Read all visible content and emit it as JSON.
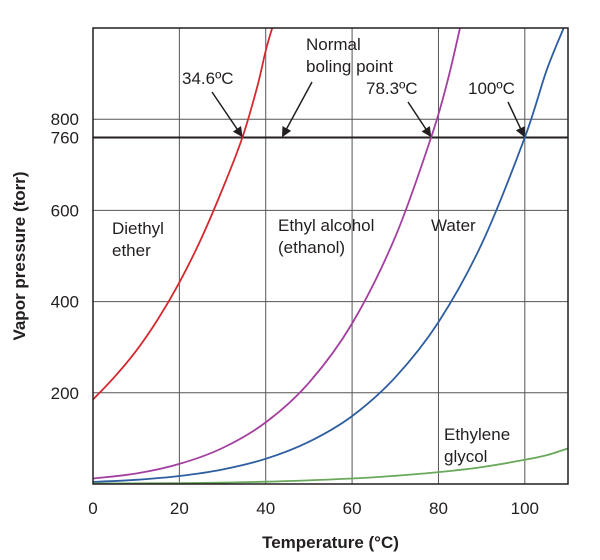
{
  "chart_data": {
    "type": "line",
    "xlabel": "Temperature (°C)",
    "ylabel": "Vapor pressure (torr)",
    "xlim": [
      0,
      110
    ],
    "ylim": [
      0,
      1000
    ],
    "x_ticks": [
      "0",
      "20",
      "40",
      "60",
      "80",
      "100"
    ],
    "x_tick_values": [
      0,
      20,
      40,
      60,
      80,
      100
    ],
    "y_ticks": [
      "200",
      "400",
      "600",
      "760",
      "800"
    ],
    "y_tick_values": [
      200,
      400,
      600,
      760,
      800
    ],
    "grid": true,
    "reference_line": {
      "y": 760,
      "label_lines": [
        "Normal",
        "boling point"
      ]
    },
    "series": [
      {
        "name": "Diethyl ether",
        "label_lines": [
          "Diethyl",
          "ether"
        ],
        "color": "#d42a2f",
        "points": [
          [
            0,
            185
          ],
          [
            5,
            235
          ],
          [
            10,
            292
          ],
          [
            15,
            361
          ],
          [
            20,
            442
          ],
          [
            25,
            537
          ],
          [
            30,
            647
          ],
          [
            34.6,
            760
          ],
          [
            38,
            870
          ],
          [
            40,
            950
          ],
          [
            41.5,
            1000
          ]
        ],
        "boiling_point": {
          "x": 34.6,
          "label": "34.6ºC"
        }
      },
      {
        "name": "Ethyl alcohol (ethanol)",
        "label_lines": [
          "Ethyl alcohol",
          "(ethanol)"
        ],
        "color": "#a33fa0",
        "points": [
          [
            0,
            12
          ],
          [
            10,
            23
          ],
          [
            20,
            44
          ],
          [
            30,
            79
          ],
          [
            40,
            135
          ],
          [
            50,
            222
          ],
          [
            60,
            352
          ],
          [
            70,
            542
          ],
          [
            78.3,
            760
          ],
          [
            82,
            880
          ],
          [
            85,
            1000
          ]
        ],
        "boiling_point": {
          "x": 78.3,
          "label": "78.3ºC"
        }
      },
      {
        "name": "Water",
        "label_lines": [
          "Water"
        ],
        "color": "#2d5ea0",
        "points": [
          [
            0,
            4.6
          ],
          [
            10,
            9.2
          ],
          [
            20,
            17.5
          ],
          [
            30,
            31.8
          ],
          [
            40,
            55.3
          ],
          [
            50,
            92.5
          ],
          [
            60,
            149
          ],
          [
            70,
            234
          ],
          [
            80,
            355
          ],
          [
            90,
            526
          ],
          [
            100,
            760
          ],
          [
            105,
            906
          ],
          [
            109,
            1000
          ]
        ],
        "boiling_point": {
          "x": 100,
          "label": "100ºC"
        }
      },
      {
        "name": "Ethylene glycol",
        "label_lines": [
          "Ethylene",
          "glycol"
        ],
        "color": "#6aa85b",
        "points": [
          [
            0,
            1
          ],
          [
            20,
            2
          ],
          [
            40,
            5
          ],
          [
            60,
            12
          ],
          [
            70,
            18
          ],
          [
            80,
            26
          ],
          [
            90,
            37
          ],
          [
            100,
            53
          ],
          [
            105,
            63
          ],
          [
            110,
            78
          ]
        ]
      }
    ]
  }
}
